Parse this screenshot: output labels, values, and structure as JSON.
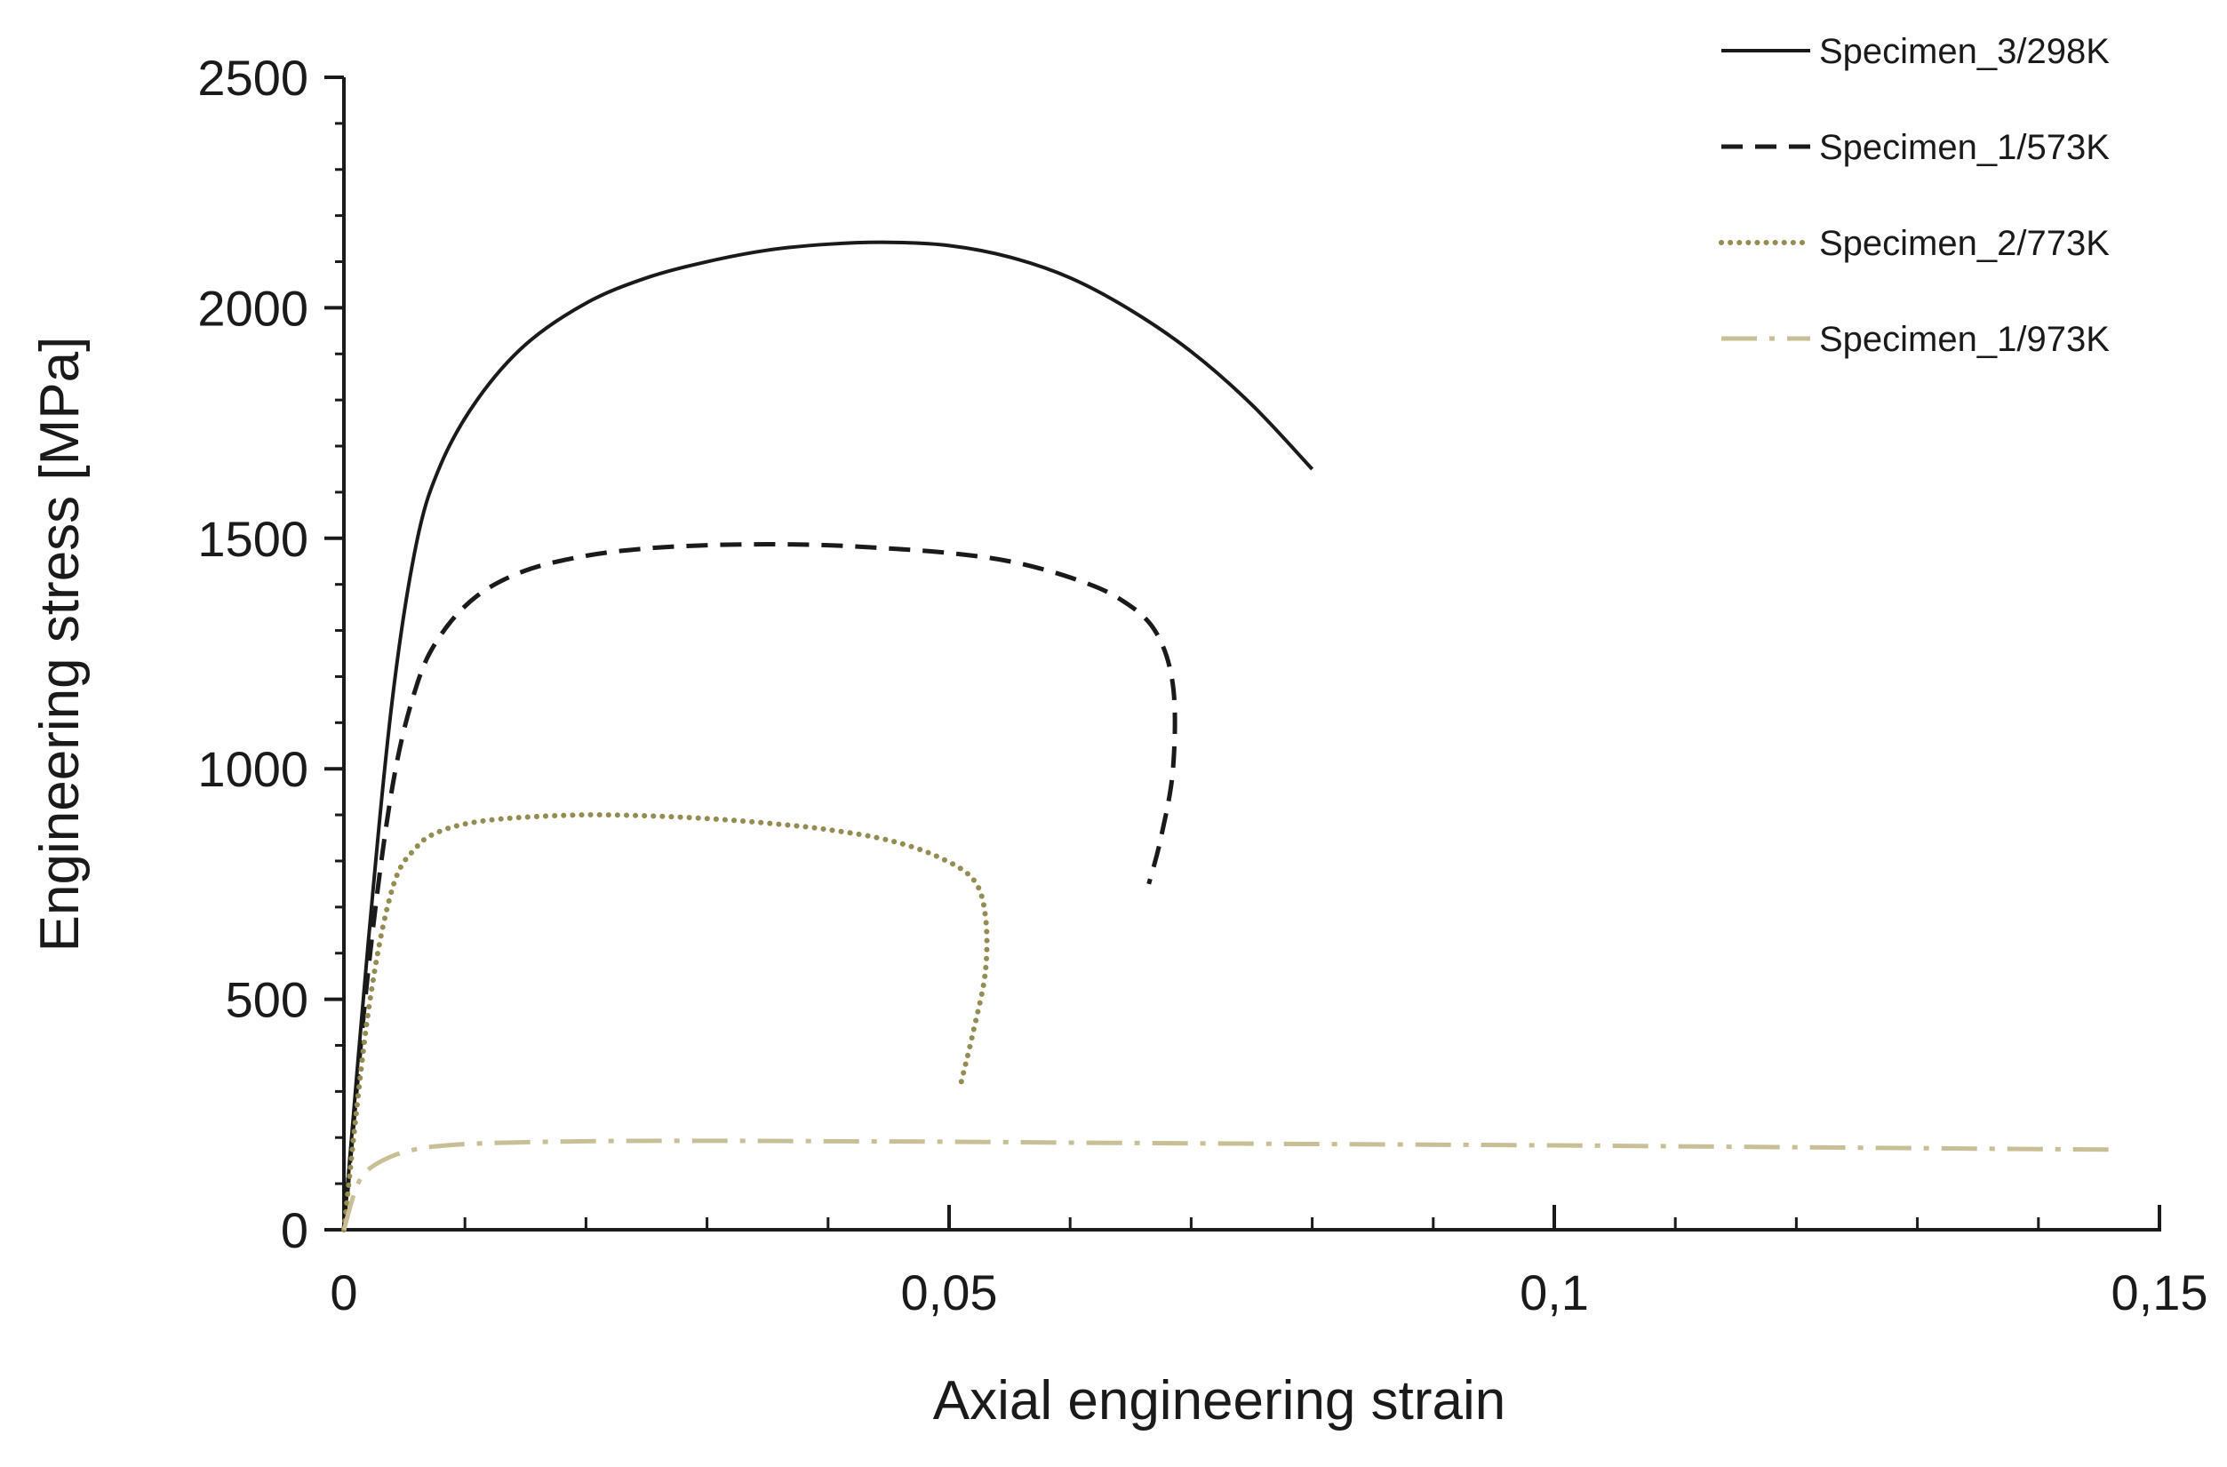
{
  "chart_data": {
    "type": "line",
    "title": "",
    "xlabel": "Axial engineering strain",
    "ylabel": "Engineering stress [MPa]",
    "xlim": [
      0,
      0.15
    ],
    "ylim": [
      0,
      2500
    ],
    "x_ticks": [
      0,
      0.05,
      0.1,
      0.15
    ],
    "x_tick_labels": [
      "0",
      "0,05",
      "0,1",
      "0,15"
    ],
    "x_minor_step": 0.01,
    "y_ticks": [
      0,
      500,
      1000,
      1500,
      2000,
      2500
    ],
    "y_tick_labels": [
      "0",
      "500",
      "1000",
      "1500",
      "2000",
      "2500"
    ],
    "y_minor_step": 100,
    "grid": false,
    "legend_position": "top-right",
    "series": [
      {
        "name": "Specimen_3/298K",
        "color": "#1a1a1a",
        "line_style": "solid",
        "x": [
          0,
          0.002,
          0.004,
          0.006,
          0.008,
          0.011,
          0.015,
          0.02,
          0.025,
          0.03,
          0.035,
          0.04,
          0.045,
          0.05,
          0.055,
          0.06,
          0.065,
          0.07,
          0.075,
          0.08
        ],
        "y": [
          0,
          620,
          1150,
          1490,
          1660,
          1800,
          1920,
          2010,
          2065,
          2100,
          2125,
          2138,
          2142,
          2135,
          2110,
          2065,
          1995,
          1905,
          1790,
          1650
        ]
      },
      {
        "name": "Specimen_1/573K",
        "color": "#1a1a1a",
        "line_style": "dashed",
        "x": [
          0,
          0.002,
          0.004,
          0.006,
          0.008,
          0.011,
          0.015,
          0.02,
          0.025,
          0.03,
          0.035,
          0.04,
          0.045,
          0.05,
          0.055,
          0.06,
          0.064,
          0.067,
          0.0685,
          0.0685,
          0.0675,
          0.0665
        ],
        "y": [
          0,
          560,
          960,
          1180,
          1290,
          1375,
          1430,
          1462,
          1478,
          1485,
          1487,
          1485,
          1478,
          1468,
          1450,
          1415,
          1370,
          1300,
          1180,
          1000,
          850,
          750
        ]
      },
      {
        "name": "Specimen_2/773K",
        "color": "#958c52",
        "line_style": "dotted",
        "x": [
          0,
          0.002,
          0.004,
          0.006,
          0.008,
          0.011,
          0.015,
          0.02,
          0.025,
          0.03,
          0.035,
          0.04,
          0.045,
          0.049,
          0.052,
          0.053,
          0.053,
          0.052,
          0.051
        ],
        "y": [
          0,
          470,
          740,
          830,
          865,
          885,
          895,
          900,
          898,
          892,
          882,
          868,
          845,
          810,
          760,
          680,
          560,
          430,
          320
        ]
      },
      {
        "name": "Specimen_1/973K",
        "color": "#c8bf97",
        "line_style": "dash-dot",
        "x": [
          0,
          0.001,
          0.002,
          0.004,
          0.006,
          0.008,
          0.012,
          0.02,
          0.03,
          0.04,
          0.05,
          0.06,
          0.08,
          0.1,
          0.12,
          0.14,
          0.146
        ],
        "y": [
          0,
          90,
          130,
          160,
          175,
          182,
          188,
          192,
          193,
          192,
          191,
          189,
          186,
          183,
          179,
          175,
          174
        ]
      }
    ]
  }
}
